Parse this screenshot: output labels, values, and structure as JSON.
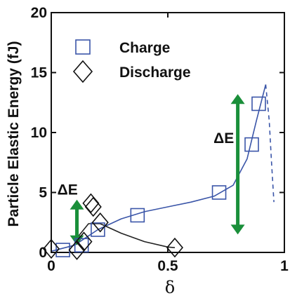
{
  "chart_data": {
    "type": "scatter",
    "title": "",
    "xlabel": "δ",
    "ylabel": "Particle Elastic Energy (fJ)",
    "xlim": [
      0,
      1
    ],
    "ylim": [
      0,
      20
    ],
    "x_ticks": [
      0,
      0.5,
      1
    ],
    "x_tick_labels": [
      "0",
      "0.5",
      "1"
    ],
    "y_ticks": [
      0,
      5,
      10,
      15,
      20
    ],
    "y_tick_labels": [
      "0",
      "5",
      "10",
      "15",
      "20"
    ],
    "grid": false,
    "legend_position": "top-left",
    "series": [
      {
        "name": "Charge",
        "marker": "square",
        "color": "#3a55a8",
        "points": [
          {
            "x": 0.05,
            "y": 0.2
          },
          {
            "x": 0.13,
            "y": 0.6
          },
          {
            "x": 0.2,
            "y": 1.9
          },
          {
            "x": 0.37,
            "y": 3.1
          },
          {
            "x": 0.72,
            "y": 5.0
          },
          {
            "x": 0.86,
            "y": 9.0
          },
          {
            "x": 0.89,
            "y": 12.4
          }
        ],
        "fit_curve": [
          {
            "x": 0.0,
            "y": 0.1
          },
          {
            "x": 0.1,
            "y": 0.6
          },
          {
            "x": 0.2,
            "y": 1.9
          },
          {
            "x": 0.3,
            "y": 2.8
          },
          {
            "x": 0.4,
            "y": 3.4
          },
          {
            "x": 0.5,
            "y": 3.8
          },
          {
            "x": 0.6,
            "y": 4.2
          },
          {
            "x": 0.7,
            "y": 4.7
          },
          {
            "x": 0.78,
            "y": 5.6
          },
          {
            "x": 0.84,
            "y": 7.8
          },
          {
            "x": 0.88,
            "y": 11.0
          },
          {
            "x": 0.92,
            "y": 14.0
          }
        ],
        "dashed_tail": [
          {
            "x": 0.92,
            "y": 14.0
          },
          {
            "x": 0.935,
            "y": 11.0
          },
          {
            "x": 0.945,
            "y": 7.5
          },
          {
            "x": 0.955,
            "y": 4.2
          }
        ]
      },
      {
        "name": "Discharge",
        "marker": "diamond",
        "color": "#111111",
        "points": [
          {
            "x": 0.0,
            "y": 0.3
          },
          {
            "x": 0.11,
            "y": 0.2
          },
          {
            "x": 0.14,
            "y": 0.9
          },
          {
            "x": 0.17,
            "y": 4.1
          },
          {
            "x": 0.18,
            "y": 3.8
          },
          {
            "x": 0.21,
            "y": 2.5
          },
          {
            "x": 0.53,
            "y": 0.4
          }
        ],
        "fit_curve": [
          {
            "x": 0.11,
            "y": 1.2
          },
          {
            "x": 0.16,
            "y": 2.4
          },
          {
            "x": 0.21,
            "y": 2.4
          },
          {
            "x": 0.3,
            "y": 1.6
          },
          {
            "x": 0.4,
            "y": 0.9
          },
          {
            "x": 0.5,
            "y": 0.45
          },
          {
            "x": 0.53,
            "y": 0.4
          }
        ]
      }
    ],
    "annotations": [
      {
        "text": "ΔE",
        "arrow_x": 0.11,
        "y_from": 0.6,
        "y_to": 4.4,
        "label_x": 0.07,
        "label_y": 5.3,
        "color": "#1a8f3a"
      },
      {
        "text": "ΔE",
        "arrow_x": 0.8,
        "y_from": 1.5,
        "y_to": 13.2,
        "label_x": 0.74,
        "label_y": 9.6,
        "color": "#1a8f3a"
      }
    ]
  }
}
